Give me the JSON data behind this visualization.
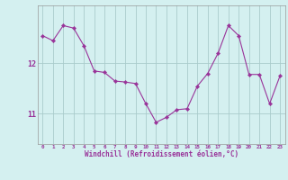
{
  "x": [
    0,
    1,
    2,
    3,
    4,
    5,
    6,
    7,
    8,
    9,
    10,
    11,
    12,
    13,
    14,
    15,
    16,
    17,
    18,
    19,
    20,
    21,
    22,
    23
  ],
  "y": [
    12.55,
    12.45,
    12.75,
    12.7,
    12.35,
    11.85,
    11.82,
    11.65,
    11.63,
    11.6,
    11.2,
    10.83,
    10.93,
    11.08,
    11.1,
    11.55,
    11.8,
    12.2,
    12.75,
    12.55,
    11.78,
    11.78,
    11.2,
    11.75
  ],
  "line_color": "#993399",
  "marker_color": "#993399",
  "bg_color": "#d4f0f0",
  "grid_color": "#aacccc",
  "axis_color": "#993399",
  "xlabel": "Windchill (Refroidissement éolien,°C)",
  "ytick_labels": [
    "11",
    "12"
  ],
  "ytick_values": [
    11,
    12
  ],
  "xlim": [
    -0.5,
    23.5
  ],
  "ylim": [
    10.4,
    13.15
  ],
  "figsize": [
    3.2,
    2.0
  ],
  "dpi": 100
}
